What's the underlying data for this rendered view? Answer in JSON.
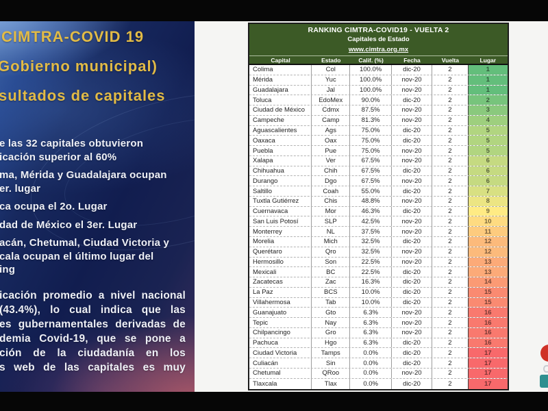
{
  "left_panel": {
    "title_lines": [
      "CIMTRA-COVID 19",
      "Gobierno municipal)",
      "sultados de capitales"
    ],
    "bullets": [
      {
        "lines": [
          "e las 32 capitales obtuvieron",
          "icación superior al 60%"
        ]
      },
      {
        "lines": [
          "ma, Mérida y Guadalajara ocupan",
          "er. lugar"
        ]
      },
      {
        "lines": [
          "ca ocupa el 2o. Lugar"
        ]
      },
      {
        "lines": [
          "dad de México el 3er. Lugar"
        ]
      },
      {
        "lines": [
          "acán, Chetumal, Ciudad Victoria y",
          "cala ocupan el último lugar del",
          "ing"
        ]
      }
    ],
    "paragraph_lines": [
      "icación promedio a nivel nacional",
      "(43.4%), lo cual indica que las",
      "es gubernamentales derivadas de",
      "demia Covid-19, que se pone a",
      "ción de la ciudadanía en los",
      "s web de las capitales es muy"
    ]
  },
  "table": {
    "title": "RANKING CIMTRA-COVID19 - VUELTA 2",
    "subtitle": "Capitales de Estado",
    "link": "www.cimtra.org.mx",
    "columns": [
      "Capital",
      "Estado",
      "Calif. (%)",
      "Fecha",
      "Vuelta",
      "Lugar"
    ],
    "rows": [
      [
        "Colima",
        "Col",
        "100.0%",
        "dic-20",
        "2",
        "1"
      ],
      [
        "Mérida",
        "Yuc",
        "100.0%",
        "nov-20",
        "2",
        "1"
      ],
      [
        "Guadalajara",
        "Jal",
        "100.0%",
        "nov-20",
        "2",
        "1"
      ],
      [
        "Toluca",
        "EdoMex",
        "90.0%",
        "dic-20",
        "2",
        "2"
      ],
      [
        "Ciudad de México",
        "Cdmx",
        "87.5%",
        "nov-20",
        "2",
        "3"
      ],
      [
        "Campeche",
        "Camp",
        "81.3%",
        "nov-20",
        "2",
        "4"
      ],
      [
        "Aguascalientes",
        "Ags",
        "75.0%",
        "dic-20",
        "2",
        "5"
      ],
      [
        "Oaxaca",
        "Oax",
        "75.0%",
        "dic-20",
        "2",
        "5"
      ],
      [
        "Puebla",
        "Pue",
        "75.0%",
        "nov-20",
        "2",
        "5"
      ],
      [
        "Xalapa",
        "Ver",
        "67.5%",
        "nov-20",
        "2",
        "6"
      ],
      [
        "Chihuahua",
        "Chih",
        "67.5%",
        "dic-20",
        "2",
        "6"
      ],
      [
        "Durango",
        "Dgo",
        "67.5%",
        "nov-20",
        "2",
        "6"
      ],
      [
        "Saltillo",
        "Coah",
        "55.0%",
        "dic-20",
        "2",
        "7"
      ],
      [
        "Tuxtla Gutiérrez",
        "Chis",
        "48.8%",
        "nov-20",
        "2",
        "8"
      ],
      [
        "Cuernavaca",
        "Mor",
        "46.3%",
        "dic-20",
        "2",
        "9"
      ],
      [
        "San Luis Potosí",
        "SLP",
        "42.5%",
        "nov-20",
        "2",
        "10"
      ],
      [
        "Monterrey",
        "NL",
        "37.5%",
        "nov-20",
        "2",
        "11"
      ],
      [
        "Morelia",
        "Mich",
        "32.5%",
        "dic-20",
        "2",
        "12"
      ],
      [
        "Querétaro",
        "Qro",
        "32.5%",
        "nov-20",
        "2",
        "12"
      ],
      [
        "Hermosillo",
        "Son",
        "22.5%",
        "nov-20",
        "2",
        "13"
      ],
      [
        "Mexicali",
        "BC",
        "22.5%",
        "dic-20",
        "2",
        "13"
      ],
      [
        "Zacatecas",
        "Zac",
        "16.3%",
        "dic-20",
        "2",
        "14"
      ],
      [
        "La Paz",
        "BCS",
        "10.0%",
        "dic-20",
        "2",
        "15"
      ],
      [
        "Villahermosa",
        "Tab",
        "10.0%",
        "dic-20",
        "2",
        "15"
      ],
      [
        "Guanajuato",
        "Gto",
        "6.3%",
        "nov-20",
        "2",
        "16"
      ],
      [
        "Tepic",
        "Nay",
        "6.3%",
        "nov-20",
        "2",
        "16"
      ],
      [
        "Chilpancingo",
        "Gro",
        "6.3%",
        "nov-20",
        "2",
        "16"
      ],
      [
        "Pachuca",
        "Hgo",
        "6.3%",
        "dic-20",
        "2",
        "16"
      ],
      [
        "Ciudad Victoria",
        "Tamps",
        "0.0%",
        "dic-20",
        "2",
        "17"
      ],
      [
        "Culiacán",
        "Sin",
        "0.0%",
        "dic-20",
        "2",
        "17"
      ],
      [
        "Chetumal",
        "QRoo",
        "0.0%",
        "nov-20",
        "2",
        "17"
      ],
      [
        "Tlaxcala",
        "Tlax",
        "0.0%",
        "dic-20",
        "2",
        "17"
      ]
    ]
  },
  "colors": {
    "letterbox_black": "#060606",
    "panel_navy": "#152459",
    "slide_title_gold": "#e2bb46",
    "table_header_green": "#3c5a26",
    "lugar_scale": {
      "min": "#63BE7B",
      "mid": "#FFEB84",
      "max": "#F8696B"
    },
    "logo_red": "#cf3227",
    "logo_teal": "#2f8f8f"
  }
}
